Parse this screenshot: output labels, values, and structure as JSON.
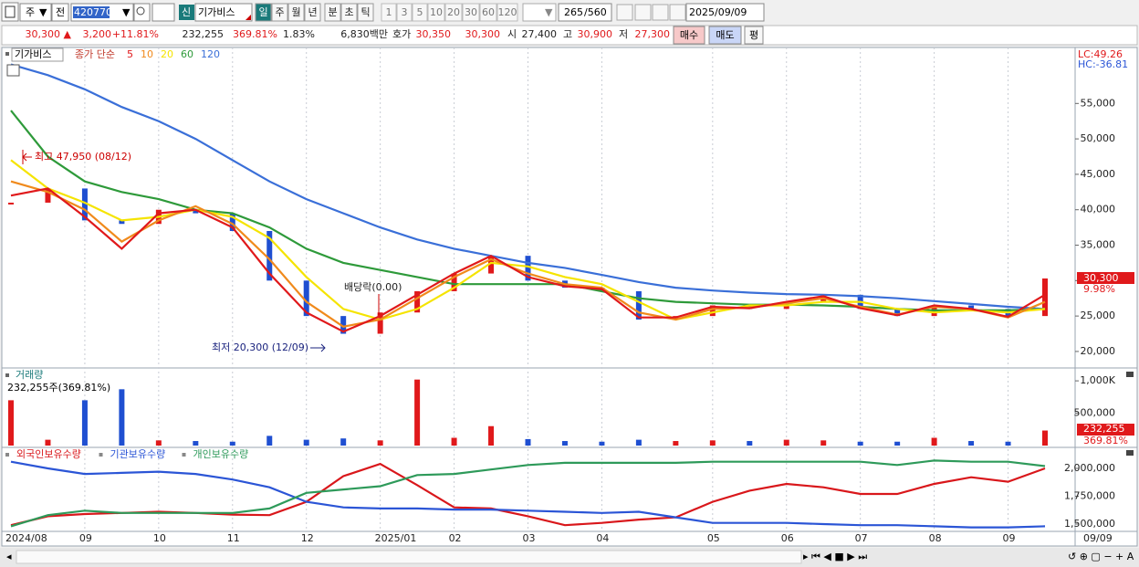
{
  "toolbar": {
    "market": "주",
    "prev": "전",
    "code": "420770",
    "new_badge": "신",
    "name": "기가비스",
    "period_buttons": [
      "일",
      "주",
      "월",
      "년",
      "분",
      "초",
      "틱"
    ],
    "interval_buttons": [
      "1",
      "3",
      "5",
      "10",
      "20",
      "30",
      "60",
      "120"
    ],
    "count": "265",
    "total": "/560",
    "date": "2025/09/09"
  },
  "info_bar": {
    "items": [
      "30,300 ▲",
      "3,200",
      "+11.81%",
      "232,255",
      "369.81%",
      "1.83%",
      "6,830백만",
      "호가",
      "30,350",
      "30,300",
      "시",
      "27,400",
      "고",
      "30,900",
      "저",
      "27,300"
    ],
    "buttons": [
      "매수",
      "매도",
      "평"
    ]
  },
  "chart_data": [
    {
      "type": "candle-line",
      "title": "기가비스",
      "legend_title": "종가 단순",
      "values": [
        41000,
        43000,
        38500,
        38000,
        40000,
        39500,
        37000,
        30000,
        25000,
        22500,
        25500,
        28500,
        31000,
        33500,
        30000,
        29000,
        28500,
        24500,
        25000,
        26500,
        26000,
        27000,
        28000,
        26000,
        25000,
        26500,
        26000,
        25000,
        30300
      ],
      "up_color": "#e0191b",
      "down_color": "#1f4fd1",
      "series": [
        {
          "name": "5",
          "color": "#e0191b",
          "values": [
            42000,
            43000,
            39000,
            34500,
            39500,
            40000,
            37500,
            31000,
            25500,
            22800,
            25000,
            28000,
            31000,
            33500,
            30500,
            29200,
            28800,
            24800,
            24800,
            26300,
            26100,
            27000,
            27800,
            26100,
            25100,
            26500,
            26000,
            24900,
            28000
          ]
        },
        {
          "name": "10",
          "color": "#f08a1c",
          "values": [
            44000,
            42500,
            40000,
            35500,
            38500,
            40500,
            38000,
            33000,
            27000,
            23500,
            24500,
            27500,
            30500,
            33000,
            31000,
            29500,
            29000,
            25500,
            24500,
            26000,
            26200,
            26800,
            27500,
            26300,
            25200,
            26300,
            26000,
            24800,
            27000
          ]
        },
        {
          "name": "20",
          "color": "#f5e400",
          "values": [
            47000,
            43000,
            41000,
            38500,
            39000,
            40000,
            39000,
            36000,
            30500,
            26000,
            24500,
            26000,
            29000,
            32500,
            32000,
            30500,
            29500,
            27000,
            24500,
            25500,
            26500,
            26500,
            27000,
            27000,
            26000,
            25500,
            25800,
            25500,
            26000
          ]
        },
        {
          "name": "60",
          "color": "#2e9a3a",
          "values": [
            54000,
            47500,
            44000,
            42500,
            41500,
            40000,
            39500,
            37500,
            34500,
            32500,
            31500,
            30500,
            29500,
            29500,
            29500,
            29500,
            28500,
            27500,
            27000,
            26800,
            26600,
            26600,
            26500,
            26300,
            26000,
            25800,
            25800,
            25800,
            26000
          ]
        },
        {
          "name": "120",
          "color": "#3a6fd8",
          "values": [
            60500,
            59000,
            57000,
            54500,
            52500,
            50000,
            47000,
            44000,
            41500,
            39500,
            37500,
            35800,
            34500,
            33500,
            32500,
            31800,
            30800,
            29800,
            29000,
            28600,
            28300,
            28100,
            28000,
            27800,
            27500,
            27100,
            26700,
            26300,
            26000
          ]
        }
      ],
      "ylim": [
        17800,
        62900
      ],
      "yticks": [
        {
          "value": 20000,
          "label": "20,000"
        },
        {
          "value": 25000,
          "label": "25,000"
        },
        {
          "value": 30000,
          "label": "30,000"
        },
        {
          "value": 35000,
          "label": "35,000"
        },
        {
          "value": 40000,
          "label": "40,000"
        },
        {
          "value": 45000,
          "label": "45,000"
        },
        {
          "value": 50000,
          "label": "50,000"
        },
        {
          "value": 55000,
          "label": "55,000"
        }
      ],
      "annotations": [
        "최고 47,950 (08/12)",
        "배당락(0.00)",
        "최저 20,300 (12/09)"
      ],
      "lc_label": "LC:49.26",
      "hc_label": "HC:-36.81",
      "current_label": "30,300",
      "change_label": "9.98%"
    },
    {
      "type": "bar",
      "title": "거래량",
      "subtitle": "232,255주(369.81%)",
      "values": [
        700000,
        90000,
        700000,
        870000,
        80000,
        70000,
        60000,
        150000,
        90000,
        110000,
        80000,
        1020000,
        120000,
        300000,
        100000,
        70000,
        60000,
        90000,
        70000,
        80000,
        70000,
        90000,
        80000,
        60000,
        60000,
        120000,
        70000,
        60000,
        232255
      ],
      "ylim": [
        0,
        1185000
      ],
      "yticks": [
        {
          "value": 500000,
          "label": "500,000"
        },
        {
          "value": 1000000,
          "label": "1,000K"
        }
      ],
      "current_label": "232,255",
      "ratio_label": "369.81%"
    },
    {
      "type": "line",
      "categories": [
        "2024/08",
        null,
        "09",
        null,
        "10",
        null,
        "11",
        null,
        "12",
        null,
        "2025/01",
        null,
        "02",
        null,
        "03",
        null,
        "04",
        null,
        null,
        "05",
        null,
        "06",
        null,
        "07",
        null,
        "08",
        null,
        "09",
        null
      ],
      "series": [
        {
          "name": "외국인보유수량",
          "color": "#d9171b",
          "values": [
            1490000,
            1570000,
            1590000,
            1600000,
            1610000,
            1600000,
            1585000,
            1580000,
            1700000,
            1930000,
            2040000,
            1850000,
            1650000,
            1640000,
            1570000,
            1490000,
            1510000,
            1540000,
            1560000,
            1700000,
            1800000,
            1860000,
            1830000,
            1770000,
            1770000,
            1860000,
            1920000,
            1880000,
            2000000
          ]
        },
        {
          "name": "기관보유수량",
          "color": "#2b55d6",
          "values": [
            2060000,
            2000000,
            1950000,
            1960000,
            1970000,
            1950000,
            1900000,
            1830000,
            1700000,
            1650000,
            1640000,
            1640000,
            1630000,
            1630000,
            1620000,
            1610000,
            1600000,
            1610000,
            1560000,
            1510000,
            1510000,
            1510000,
            1500000,
            1490000,
            1490000,
            1480000,
            1470000,
            1470000,
            1480000
          ]
        },
        {
          "name": "개인보유수량",
          "color": "#2e9a5a",
          "values": [
            1480000,
            1580000,
            1620000,
            1600000,
            1600000,
            1600000,
            1600000,
            1640000,
            1780000,
            1810000,
            1840000,
            1940000,
            1950000,
            1990000,
            2030000,
            2050000,
            2050000,
            2050000,
            2050000,
            2060000,
            2060000,
            2060000,
            2060000,
            2060000,
            2030000,
            2070000,
            2060000,
            2060000,
            2020000
          ]
        }
      ],
      "ylim": [
        1434000,
        2172000
      ],
      "yticks": [
        {
          "value": 1500000,
          "label": "1,500,000"
        },
        {
          "value": 1750000,
          "label": "1,750,000"
        },
        {
          "value": 2000000,
          "label": "2,000,000"
        }
      ],
      "cursor_label": "09/09"
    }
  ]
}
